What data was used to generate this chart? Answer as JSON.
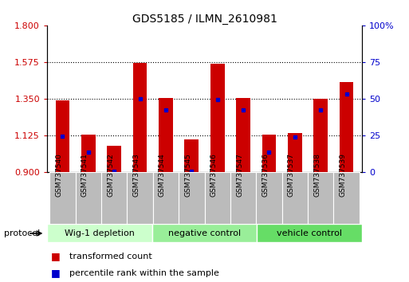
{
  "title": "GDS5185 / ILMN_2610981",
  "samples": [
    "GSM737540",
    "GSM737541",
    "GSM737542",
    "GSM737543",
    "GSM737544",
    "GSM737545",
    "GSM737546",
    "GSM737547",
    "GSM737536",
    "GSM737537",
    "GSM737538",
    "GSM737539"
  ],
  "red_values": [
    1.34,
    1.13,
    1.06,
    1.57,
    1.355,
    1.1,
    1.565,
    1.355,
    1.13,
    1.14,
    1.35,
    1.45
  ],
  "blue_values": [
    1.122,
    1.02,
    0.905,
    1.35,
    1.28,
    0.905,
    1.345,
    1.28,
    1.02,
    1.115,
    1.28,
    1.38
  ],
  "ylim_left": [
    0.9,
    1.8
  ],
  "ylim_right": [
    0,
    100
  ],
  "yticks_left": [
    0.9,
    1.125,
    1.35,
    1.575,
    1.8
  ],
  "yticks_right": [
    0,
    25,
    50,
    75,
    100
  ],
  "groups": [
    {
      "label": "Wig-1 depletion",
      "start": 0,
      "end": 4,
      "color": "#ccffcc"
    },
    {
      "label": "negative control",
      "start": 4,
      "end": 8,
      "color": "#99ee99"
    },
    {
      "label": "vehicle control",
      "start": 8,
      "end": 12,
      "color": "#66dd66"
    }
  ],
  "bar_color": "#cc0000",
  "blue_color": "#0000cc",
  "bar_width": 0.55,
  "baseline": 0.9,
  "background_color": "#ffffff",
  "plot_bg": "#ffffff",
  "sample_box_color": "#bbbbbb",
  "grid_color": "#000000",
  "legend_red": "transformed count",
  "legend_blue": "percentile rank within the sample",
  "protocol_label": "protocol",
  "left_tick_color": "#cc0000",
  "right_tick_color": "#0000cc",
  "title_fontsize": 10,
  "tick_fontsize": 8,
  "sample_fontsize": 6.5,
  "group_fontsize": 8,
  "legend_fontsize": 8
}
